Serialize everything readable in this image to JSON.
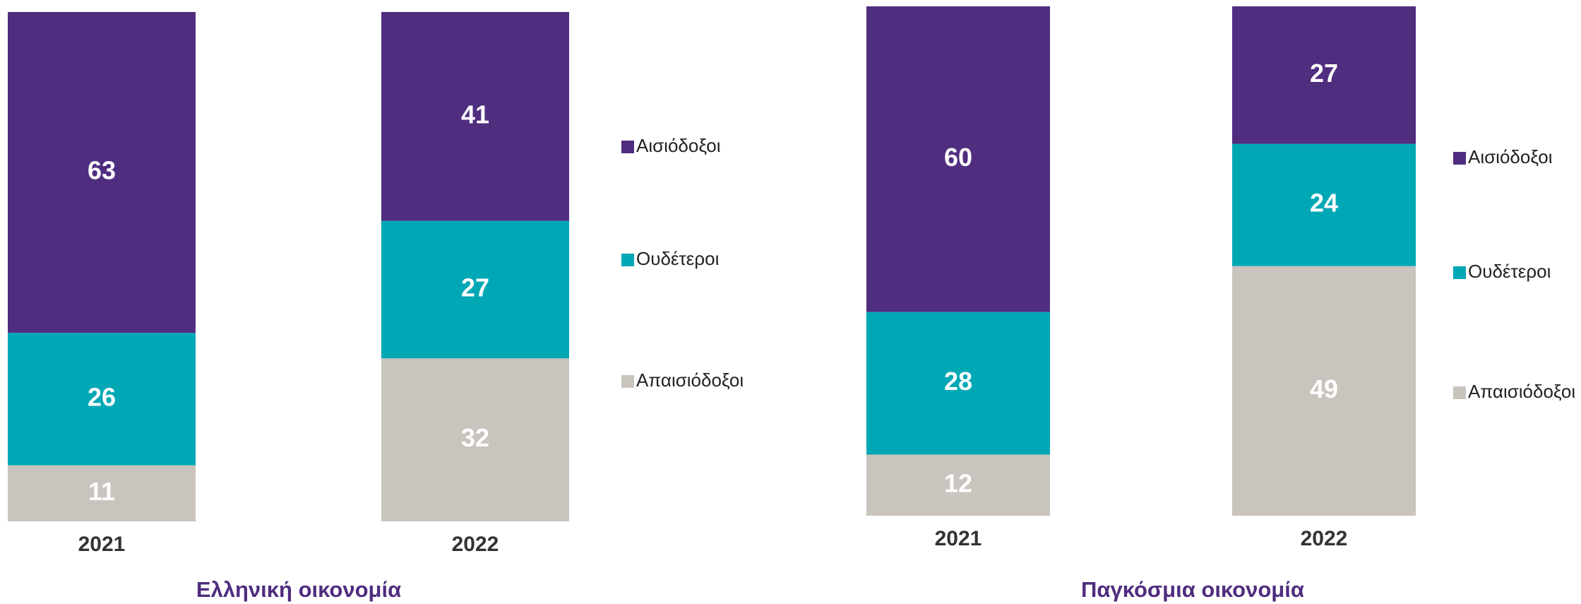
{
  "chart_data": [
    {
      "type": "stacked_bar",
      "title": "Ελληνική οικονομία",
      "categories": [
        "2021",
        "2022"
      ],
      "series": [
        {
          "name": "Αισιόδοξοι",
          "color": "#4f2d7f",
          "values": [
            63,
            41
          ]
        },
        {
          "name": "Ουδέτεροι",
          "color": "#00a8b5",
          "values": [
            26,
            27
          ]
        },
        {
          "name": "Απαισιόδοξοι",
          "color": "#c9c4bd",
          "values": [
            11,
            32
          ]
        }
      ]
    },
    {
      "type": "stacked_bar",
      "title": "Παγκόσμια οικονομία",
      "categories": [
        "2021",
        "2022"
      ],
      "series": [
        {
          "name": "Αισιόδοξοι",
          "color": "#4f2d7f",
          "values": [
            60,
            27
          ]
        },
        {
          "name": "Ουδέτεροι",
          "color": "#00a8b5",
          "values": [
            28,
            24
          ]
        },
        {
          "name": "Απαισιόδοξοι",
          "color": "#c9c4bd",
          "values": [
            12,
            49
          ]
        }
      ]
    }
  ]
}
